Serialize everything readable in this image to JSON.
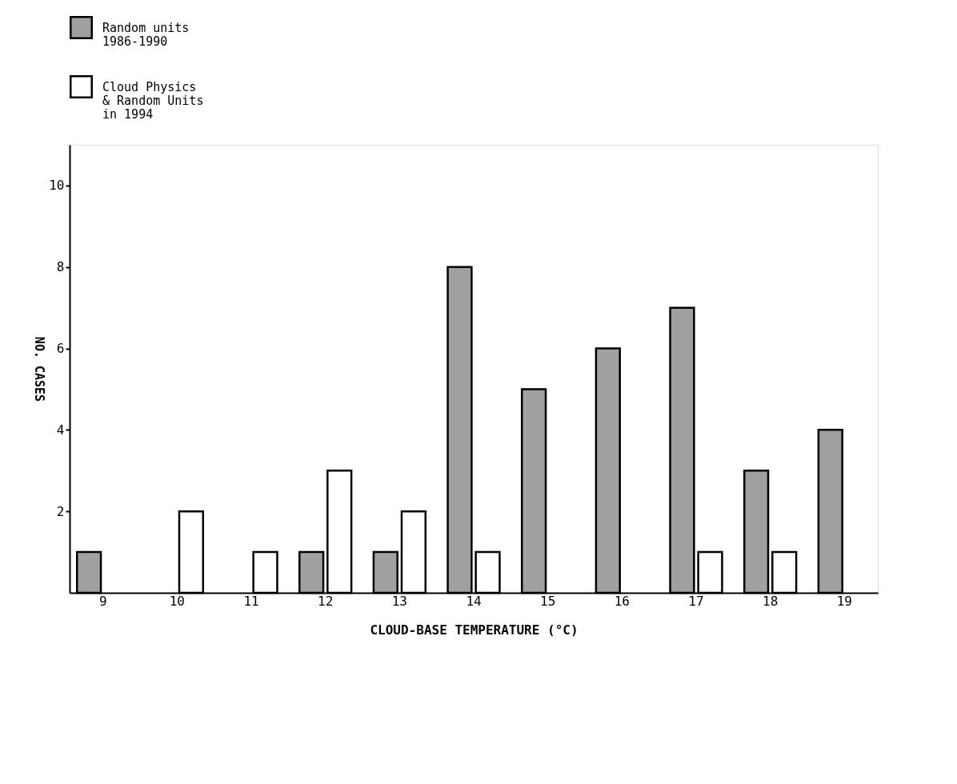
{
  "chart_data": {
    "type": "bar",
    "categories": [
      "9",
      "10",
      "11",
      "12",
      "13",
      "14",
      "15",
      "16",
      "17",
      "18",
      "19"
    ],
    "series": [
      {
        "name": "Random units\n1986-1990",
        "color": "#a0a0a0",
        "values": [
          1,
          null,
          null,
          1,
          1,
          8,
          5,
          6,
          7,
          3,
          4
        ]
      },
      {
        "name": "Cloud Physics\n& Random Units\nin 1994",
        "color": "#ffffff",
        "values": [
          null,
          2,
          1,
          3,
          2,
          1,
          null,
          null,
          1,
          1,
          null
        ]
      }
    ],
    "xlabel": "CLOUD-BASE TEMPERATURE (°C)",
    "ylabel": "NO. CASES",
    "ylim": [
      0,
      11
    ],
    "yticks": [
      2,
      4,
      6,
      8,
      10
    ],
    "grid": false,
    "legend": "top left"
  }
}
